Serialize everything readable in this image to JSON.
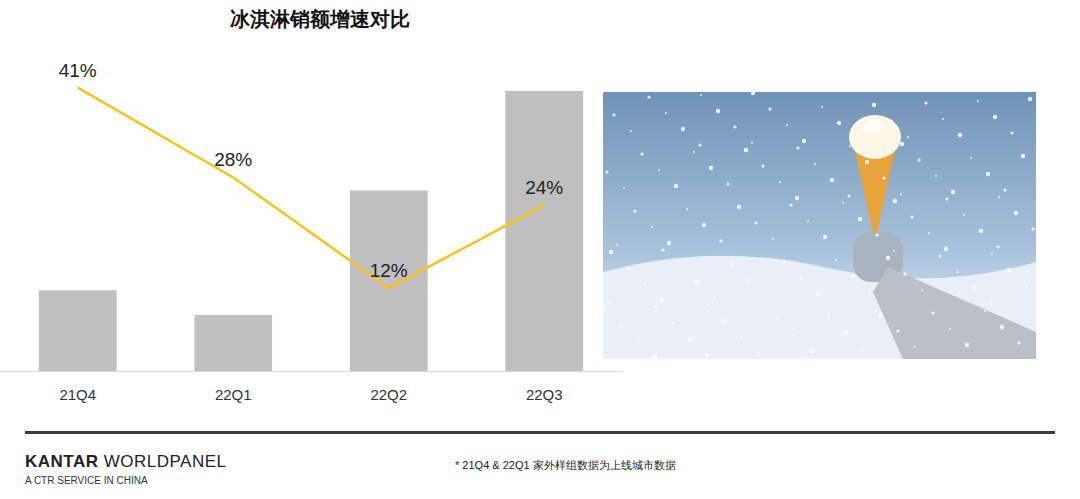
{
  "chart_data": {
    "type": "bar",
    "title": "冰淇淋销额增速对比",
    "categories": [
      "21Q4",
      "22Q1",
      "22Q2",
      "22Q3"
    ],
    "series": [
      {
        "type": "bar",
        "color": "#bfbfbf",
        "values": [
          26,
          18,
          58,
          90
        ]
      },
      {
        "type": "line",
        "color": "#fbc21b",
        "axis": "y2",
        "values": [
          41,
          28,
          12,
          24
        ],
        "value_labels": [
          "41%",
          "28%",
          "12%",
          "24%"
        ],
        "data_labels": true,
        "marker": "none",
        "line_style": "solid"
      }
    ],
    "ylim": [
      0,
      100
    ],
    "y2lim": [
      0,
      45
    ],
    "tick_labels": "x",
    "grid": false
  },
  "footer": {
    "brand": "KANTAR WORLDPANEL",
    "subtitle": "A CTR SERVICE IN CHINA",
    "note": "* 21Q4 & 22Q1 家外样组数据为上线城市数据"
  }
}
